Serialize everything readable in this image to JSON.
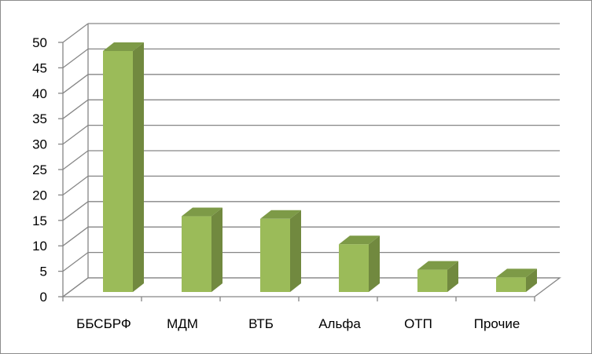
{
  "chart_data": {
    "type": "bar",
    "style": "3d-column",
    "categories": [
      "ББСБРФ",
      "МДМ",
      "ВТБ",
      "Альфа",
      "ОТП",
      "Прочие"
    ],
    "values": [
      48,
      15.5,
      15,
      10,
      5,
      3.5
    ],
    "ylim": [
      0,
      50
    ],
    "yticks": [
      0,
      5,
      10,
      15,
      20,
      25,
      30,
      35,
      40,
      45,
      50
    ],
    "grid": true,
    "legend": "none",
    "title": "",
    "xlabel": "",
    "ylabel": "",
    "colors": {
      "bar_front": "#9bbb59",
      "bar_side": "#71893f",
      "bar_top": "#7d9a47",
      "grid": "#868686",
      "frame": "#8c8c8c"
    }
  }
}
